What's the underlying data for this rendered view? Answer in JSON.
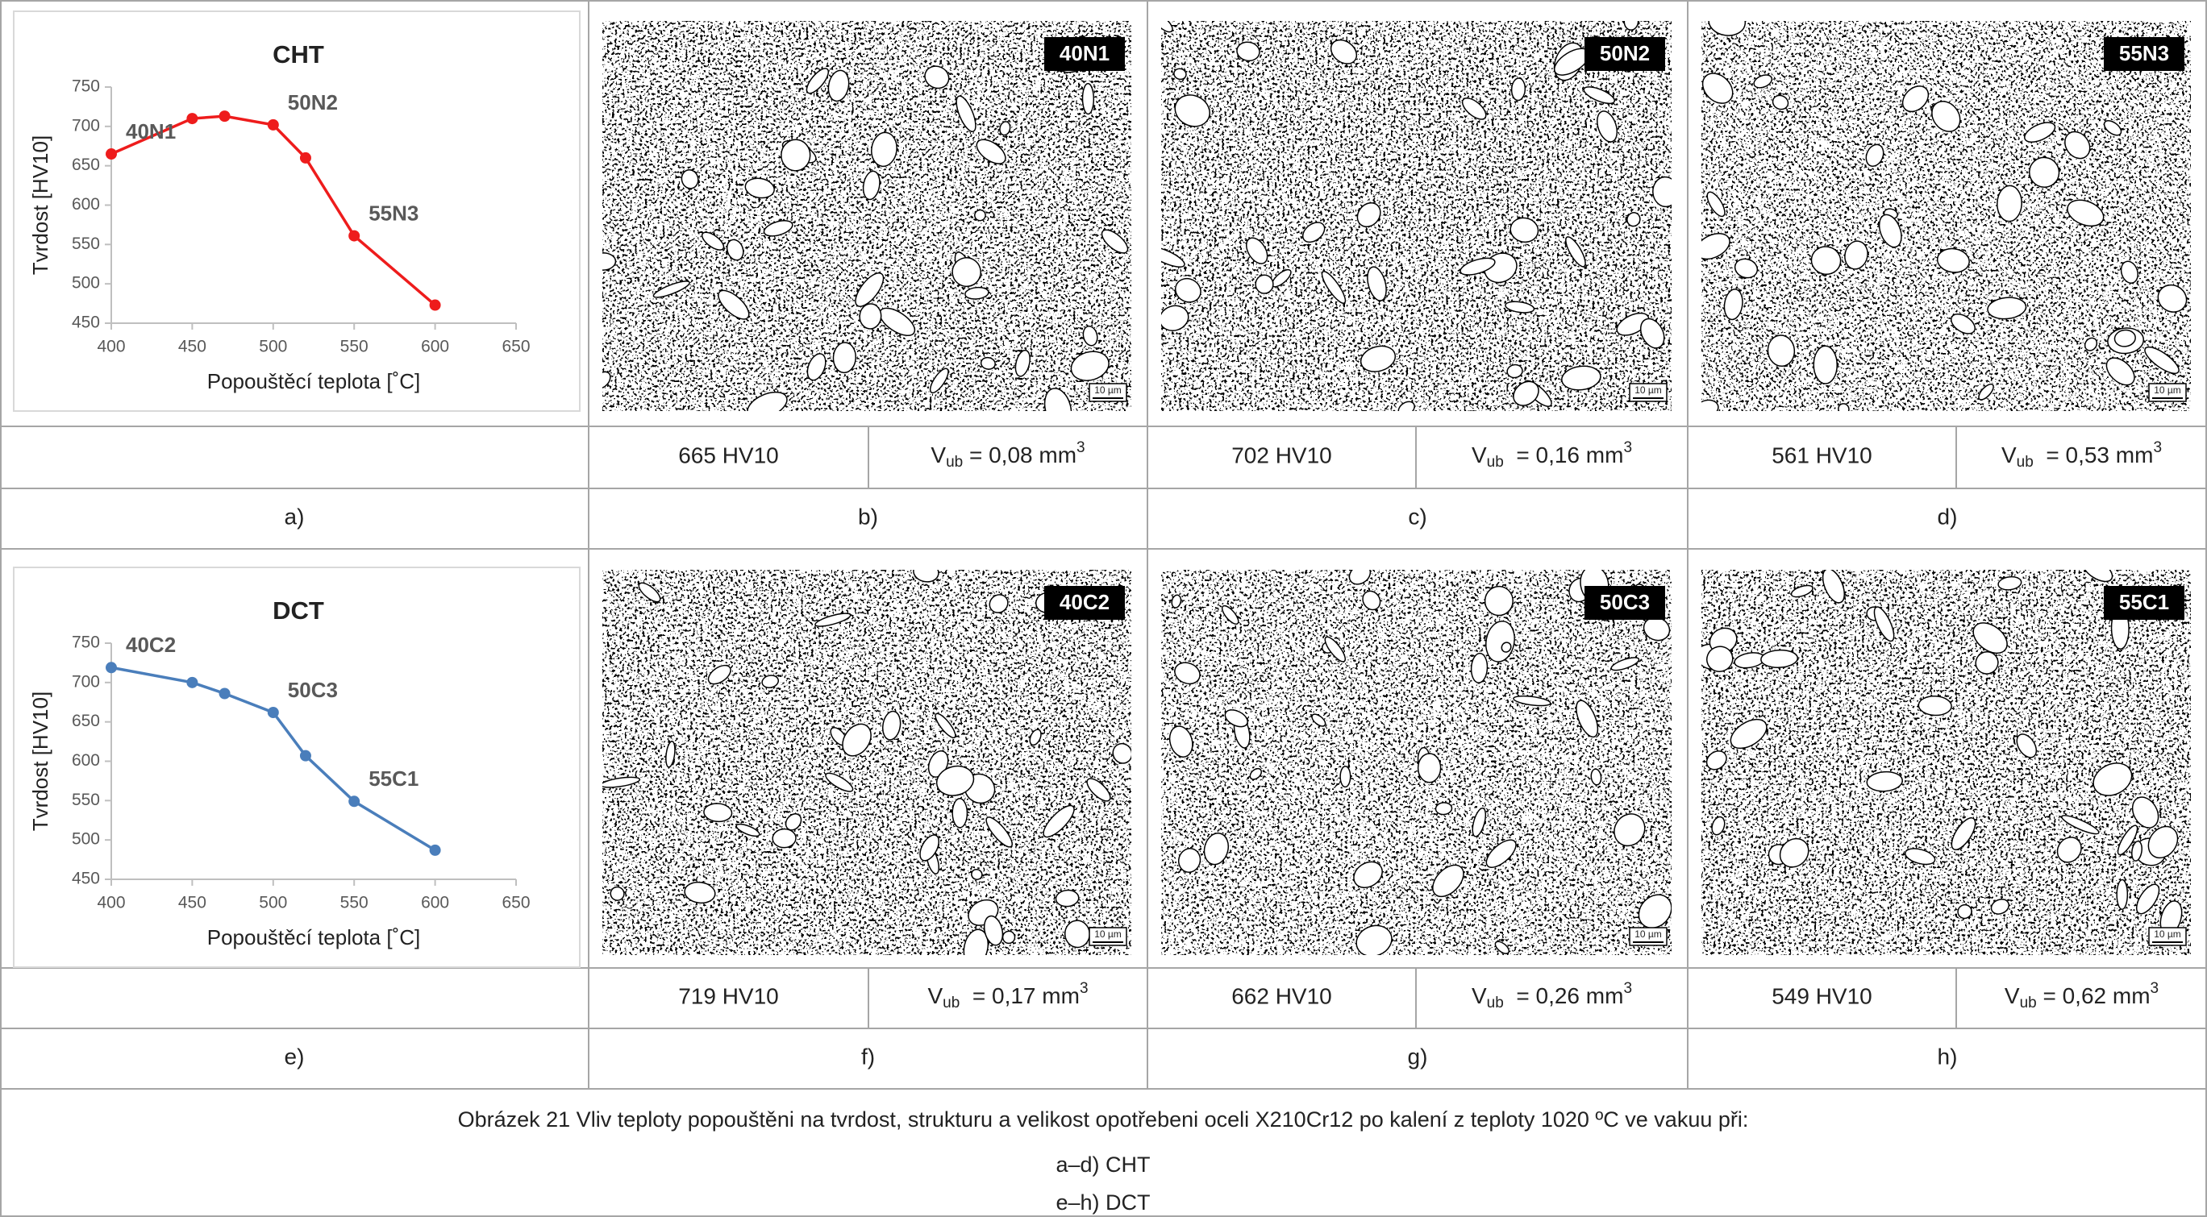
{
  "chart_data": [
    {
      "type": "line",
      "title": "CHT",
      "xlabel": "Popouštěcí teplota [˚C]",
      "ylabel": "Tvrdost [HV10]",
      "x": [
        400,
        450,
        470,
        500,
        520,
        550,
        600
      ],
      "values": [
        665,
        710,
        713,
        702,
        660,
        561,
        473
      ],
      "color": "#ee1c1c",
      "xlim": [
        400,
        650
      ],
      "xticks": [
        400,
        450,
        500,
        550,
        600,
        650
      ],
      "ylim": [
        450,
        750
      ],
      "yticks": [
        450,
        500,
        550,
        600,
        650,
        700,
        750
      ],
      "annotations": [
        {
          "text": "40N1",
          "x": 400
        },
        {
          "text": "50N2",
          "x": 500
        },
        {
          "text": "55N3",
          "x": 550
        }
      ]
    },
    {
      "type": "line",
      "title": "DCT",
      "xlabel": "Popouštěcí teplota [˚C]",
      "ylabel": "Tvrdost [HV10]",
      "x": [
        400,
        450,
        470,
        500,
        520,
        550,
        600
      ],
      "values": [
        719,
        700,
        686,
        662,
        607,
        549,
        487
      ],
      "color": "#4a7ebb",
      "xlim": [
        400,
        650
      ],
      "xticks": [
        400,
        450,
        500,
        550,
        600,
        650
      ],
      "ylim": [
        450,
        750
      ],
      "yticks": [
        450,
        500,
        550,
        600,
        650,
        700,
        750
      ],
      "annotations": [
        {
          "text": "40C2",
          "x": 400
        },
        {
          "text": "50C3",
          "x": 500
        },
        {
          "text": "55C1",
          "x": 550
        }
      ]
    }
  ],
  "scale_bar": "10 µm",
  "rows": [
    {
      "chart_letter": "a)",
      "panels": [
        {
          "sample": "40N1",
          "hardness": "665 HV10",
          "wear": {
            "symbol": "V",
            "subscript": "ub",
            "text": " = 0,08 mm",
            "superscript": "3"
          },
          "letter": "b)"
        },
        {
          "sample": "50N2",
          "hardness": "702 HV10",
          "wear": {
            "symbol": "V",
            "subscript": "ub",
            "text": "  = 0,16 mm",
            "superscript": "3"
          },
          "letter": "c)"
        },
        {
          "sample": "55N3",
          "hardness": "561 HV10",
          "wear": {
            "symbol": "V",
            "subscript": "ub",
            "text": "  = 0,53 mm",
            "superscript": "3"
          },
          "letter": "d)"
        }
      ]
    },
    {
      "chart_letter": "e)",
      "panels": [
        {
          "sample": "40C2",
          "hardness": "719 HV10",
          "wear": {
            "symbol": "V",
            "subscript": "ub",
            "text": "  = 0,17 mm",
            "superscript": "3"
          },
          "letter": "f)"
        },
        {
          "sample": "50C3",
          "hardness": "662 HV10",
          "wear": {
            "symbol": "V",
            "subscript": "ub",
            "text": "  = 0,26 mm",
            "superscript": "3"
          },
          "letter": "g)"
        },
        {
          "sample": "55C1",
          "hardness": "549 HV10",
          "wear": {
            "symbol": "V",
            "subscript": "ub",
            "text": " = 0,62 mm",
            "superscript": "3"
          },
          "letter": "h)"
        }
      ]
    }
  ],
  "caption": {
    "text": "Obrázek 21 Vliv teploty popouštěni na tvrdost, strukturu a velikost opotřebeni oceli X210Cr12 po kalení z teploty 1020 ºC ve vakuu při:",
    "lines": [
      "a–d) CHT",
      "e–h) DCT"
    ]
  }
}
